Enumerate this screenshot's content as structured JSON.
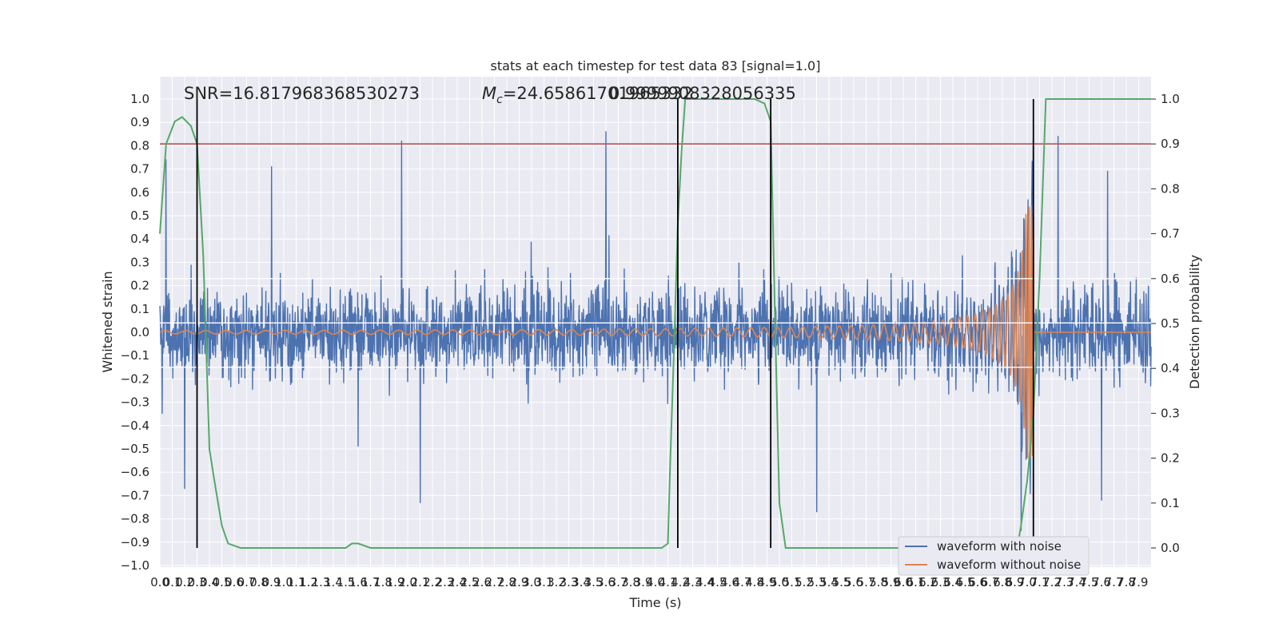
{
  "chart_data": {
    "type": "line",
    "title": "stats at each timestep for test data 83 [signal=1.0]",
    "xlabel": "Time (s)",
    "ylabel_left": "Whitened strain",
    "ylabel_right": "Detection probability",
    "xlim": [
      0.0,
      8.0
    ],
    "ylim_left": [
      -1.0,
      1.0
    ],
    "ylim_right": [
      0.0,
      1.0
    ],
    "x_ticks": [
      "0.0",
      "0.1",
      "0.2",
      "0.3",
      "0.4",
      "0.5",
      "0.6",
      "0.7",
      "0.8",
      "0.9",
      "1.0",
      "1.1",
      "1.2",
      "1.3",
      "1.4",
      "1.5",
      "1.6",
      "1.7",
      "1.8",
      "1.9",
      "2.0",
      "2.1",
      "2.2",
      "2.3",
      "2.4",
      "2.5",
      "2.6",
      "2.7",
      "2.8",
      "2.9",
      "3.0",
      "3.1",
      "3.2",
      "3.3",
      "3.4",
      "3.5",
      "3.6",
      "3.7",
      "3.8",
      "3.9",
      "4.0",
      "4.1",
      "4.2",
      "4.3",
      "4.4",
      "4.5",
      "4.6",
      "4.7",
      "4.8",
      "4.9",
      "5.0",
      "5.1",
      "5.2",
      "5.3",
      "5.4",
      "5.5",
      "5.6",
      "5.7",
      "5.8",
      "5.9",
      "6.0",
      "6.1",
      "6.2",
      "6.3",
      "6.4",
      "6.5",
      "6.6",
      "6.7",
      "6.8",
      "6.9",
      "7.0",
      "7.1",
      "7.2",
      "7.3",
      "7.4",
      "7.5",
      "7.6",
      "7.7",
      "7.8",
      "7.9"
    ],
    "y_ticks_left": [
      "−1.0",
      "−0.9",
      "−0.8",
      "−0.7",
      "−0.6",
      "−0.5",
      "−0.4",
      "−0.3",
      "−0.2",
      "−0.1",
      "0.0",
      "0.1",
      "0.2",
      "0.3",
      "0.4",
      "0.5",
      "0.6",
      "0.7",
      "0.8",
      "0.9",
      "1.0"
    ],
    "y_ticks_right": [
      "0.0",
      "0.1",
      "0.2",
      "0.3",
      "0.4",
      "0.5",
      "0.6",
      "0.7",
      "0.8",
      "0.9",
      "1.0"
    ],
    "annotations": {
      "snr": "SNR=16.817968368530273",
      "mc_prefix": "M",
      "mc_sub": "c",
      "mc_value": "=24.65861701965332",
      "overlap": "0.9999908328056335"
    },
    "threshold": {
      "axis": "right",
      "value": 0.9,
      "color": "#c44e52"
    },
    "horizontal_white_lines": [
      0.23,
      0.04,
      -0.15
    ],
    "vertical_markers": [
      0.3,
      4.18,
      4.93,
      7.05
    ],
    "series": [
      {
        "name": "waveform with noise",
        "color": "#4c72b0",
        "axis": "left",
        "noise_sigma": 0.16,
        "spikes": [
          {
            "x": 0.05,
            "y": 0.74
          },
          {
            "x": 0.2,
            "y": -0.67
          },
          {
            "x": 0.9,
            "y": 0.71
          },
          {
            "x": 1.95,
            "y": 0.82
          },
          {
            "x": 2.1,
            "y": -0.73
          },
          {
            "x": 3.6,
            "y": 0.86
          },
          {
            "x": 5.3,
            "y": -0.77
          },
          {
            "x": 7.05,
            "y": 0.83
          },
          {
            "x": 7.25,
            "y": 0.84
          },
          {
            "x": 7.65,
            "y": 0.69
          },
          {
            "x": 6.95,
            "y": -0.85
          },
          {
            "x": 7.6,
            "y": -0.72
          }
        ]
      },
      {
        "name": "waveform without noise",
        "color": "#dd8452",
        "axis": "left",
        "chirp": {
          "start": 0.0,
          "merger": 7.05,
          "start_amplitude": 0.007,
          "peak_amplitude": 0.55,
          "start_frequency_hz": 6,
          "end_frequency_hz": 60
        }
      },
      {
        "name": "detection probability",
        "color": "#55a868",
        "axis": "right",
        "x": [
          0.0,
          0.05,
          0.12,
          0.18,
          0.25,
          0.3,
          0.35,
          0.4,
          0.44,
          0.5,
          0.55,
          0.65,
          0.8,
          1.0,
          1.2,
          1.4,
          1.5,
          1.55,
          1.6,
          1.7,
          1.8,
          2.0,
          2.5,
          3.0,
          3.5,
          4.0,
          4.05,
          4.1,
          4.12,
          4.15,
          4.18,
          4.21,
          4.24,
          4.26,
          4.3,
          4.5,
          4.8,
          4.88,
          4.93,
          4.97,
          5.0,
          5.05,
          5.2,
          5.5,
          6.0,
          6.5,
          6.8,
          6.92,
          6.95,
          7.0,
          7.05,
          7.1,
          7.15,
          7.5,
          8.0
        ],
        "y": [
          0.7,
          0.9,
          0.95,
          0.96,
          0.94,
          0.9,
          0.65,
          0.22,
          0.15,
          0.05,
          0.01,
          0.0,
          0.0,
          0.0,
          0.0,
          0.0,
          0.0,
          0.01,
          0.01,
          0.0,
          0.0,
          0.0,
          0.0,
          0.0,
          0.0,
          0.0,
          0.0,
          0.01,
          0.2,
          0.45,
          0.72,
          0.88,
          1.0,
          1.0,
          1.0,
          1.0,
          1.0,
          0.99,
          0.95,
          0.45,
          0.1,
          0.0,
          0.0,
          0.0,
          0.0,
          0.0,
          0.0,
          0.0,
          0.05,
          0.15,
          0.3,
          0.6,
          1.0,
          1.0,
          1.0
        ]
      }
    ],
    "legend": {
      "position": "lower-right",
      "entries": [
        {
          "label": "waveform with noise",
          "color": "#4c72b0"
        },
        {
          "label": "waveform without noise",
          "color": "#dd8452"
        }
      ]
    },
    "style": {
      "plot_background": "#eaeaf2",
      "grid_color": "#ffffff",
      "marker_color": "#000000"
    }
  }
}
